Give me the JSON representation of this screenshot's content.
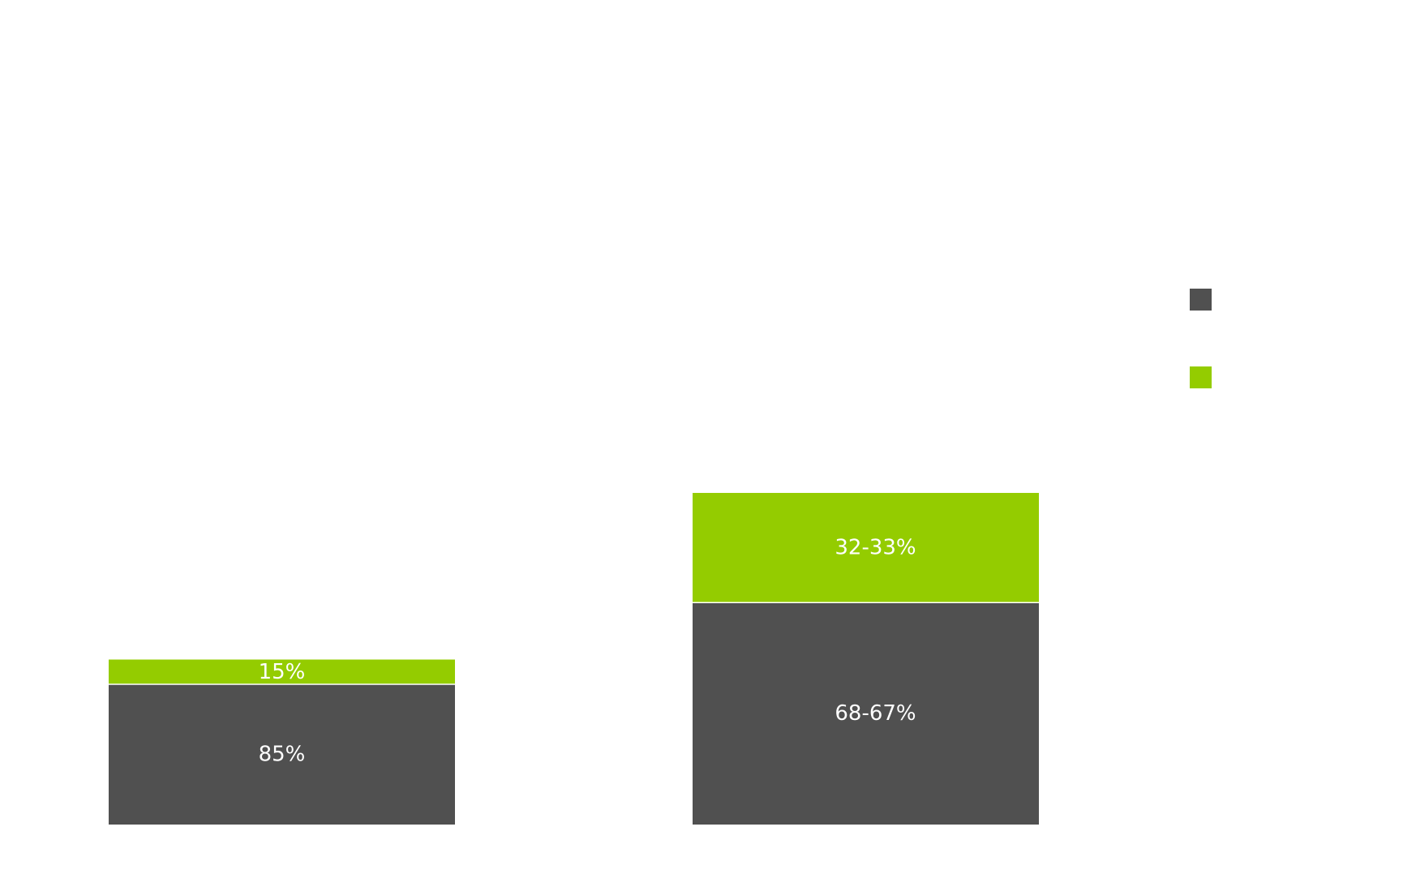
{
  "chart_data": {
    "type": "bar",
    "stacked": true,
    "title": "",
    "xlabel": "",
    "ylabel": "",
    "categories": [
      "",
      ""
    ],
    "ylim": [
      0,
      220
    ],
    "bar_heights": [
      100,
      201
    ],
    "series": [
      {
        "color": "#505050",
        "values": [
          85,
          134.5
        ],
        "labels": [
          "85%",
          "68-67%"
        ]
      },
      {
        "color": "#94cc00",
        "values": [
          15,
          66.5
        ],
        "labels": [
          "15%",
          "32-33%"
        ]
      }
    ],
    "legend": {
      "position": "right",
      "entries": [
        {
          "color": "#505050",
          "label": ""
        },
        {
          "color": "#94cc00",
          "label": ""
        }
      ]
    },
    "grid": false
  }
}
